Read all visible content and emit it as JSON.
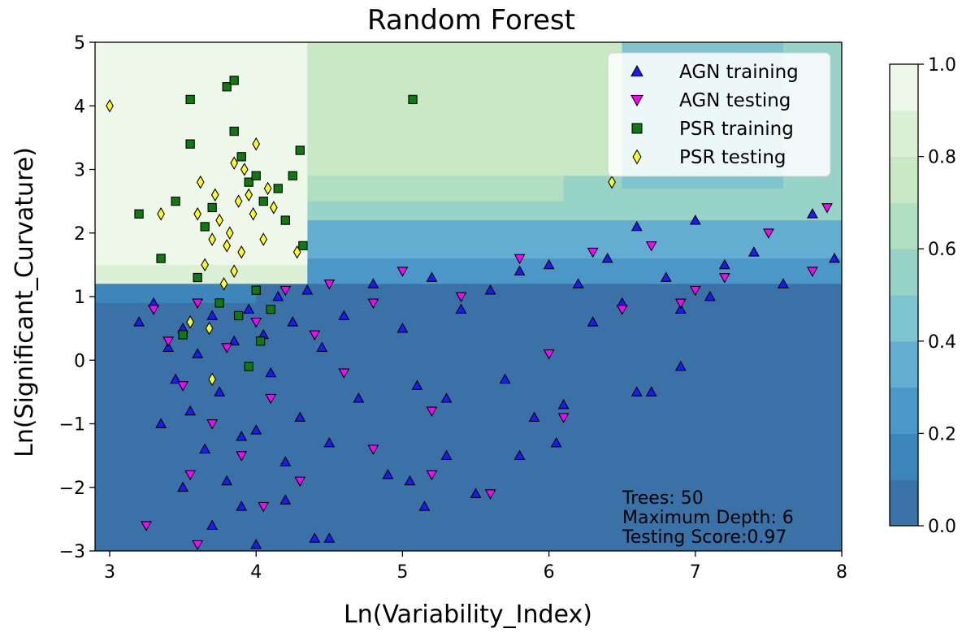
{
  "chart_data": {
    "type": "scatter",
    "title": "Random Forest",
    "xlabel": "Ln(Variability_Index)",
    "ylabel": "Ln(Significant_Curvature)",
    "xlim": [
      2.9,
      8.0
    ],
    "ylim": [
      -3.0,
      5.0
    ],
    "x_ticks": [
      "3",
      "4",
      "5",
      "6",
      "7",
      "8"
    ],
    "y_ticks": [
      "−3",
      "−2",
      "−1",
      "0",
      "1",
      "2",
      "3",
      "4",
      "5"
    ],
    "grid": false,
    "legend_position": "top-right",
    "background": {
      "kind": "decision-probability-contour",
      "note": "filled contour of PSR probability; high (pale green) for low variability and curvature above about 1.2"
    },
    "colorbar": {
      "range": [
        0.0,
        1.0
      ],
      "ticks": [
        "0.0",
        "0.2",
        "0.4",
        "0.6",
        "0.8",
        "1.0"
      ],
      "levels": 10,
      "colors": [
        "#3a72a8",
        "#3d86bc",
        "#4b98c8",
        "#63aed0",
        "#7ec5cf",
        "#97d3c7",
        "#b1dfc1",
        "#c9e9c4",
        "#dcf0d6",
        "#eef8ea"
      ]
    },
    "annotations": [
      "Trees: 50",
      "Maximum Depth: 6",
      "Testing Score:0.97"
    ],
    "series": [
      {
        "name": "AGN training",
        "marker": "triangle-up",
        "color": "#1a1aff",
        "points": [
          [
            3.2,
            0.6
          ],
          [
            3.3,
            0.9
          ],
          [
            3.4,
            0.2
          ],
          [
            3.45,
            -0.3
          ],
          [
            3.5,
            0.5
          ],
          [
            3.55,
            -0.8
          ],
          [
            3.6,
            0.1
          ],
          [
            3.65,
            -1.4
          ],
          [
            3.7,
            0.7
          ],
          [
            3.75,
            -0.5
          ],
          [
            3.8,
            -1.9
          ],
          [
            3.85,
            0.3
          ],
          [
            3.9,
            -2.3
          ],
          [
            3.95,
            0.8
          ],
          [
            4.0,
            -1.1
          ],
          [
            4.05,
            0.4
          ],
          [
            4.1,
            -0.2
          ],
          [
            4.15,
            1.0
          ],
          [
            4.2,
            -1.6
          ],
          [
            4.25,
            0.6
          ],
          [
            4.3,
            -0.9
          ],
          [
            4.35,
            1.1
          ],
          [
            4.4,
            -2.8
          ],
          [
            4.45,
            0.2
          ],
          [
            4.5,
            -1.3
          ],
          [
            4.6,
            0.7
          ],
          [
            4.7,
            -0.6
          ],
          [
            4.8,
            1.2
          ],
          [
            4.9,
            -1.8
          ],
          [
            5.0,
            0.5
          ],
          [
            5.1,
            -0.4
          ],
          [
            5.2,
            1.3
          ],
          [
            5.3,
            -1.5
          ],
          [
            5.4,
            0.8
          ],
          [
            5.5,
            -2.1
          ],
          [
            5.6,
            1.1
          ],
          [
            5.7,
            -0.3
          ],
          [
            5.8,
            1.4
          ],
          [
            5.9,
            -0.9
          ],
          [
            6.0,
            1.5
          ],
          [
            6.1,
            -0.7
          ],
          [
            6.2,
            1.2
          ],
          [
            6.3,
            0.6
          ],
          [
            6.4,
            1.6
          ],
          [
            6.5,
            0.9
          ],
          [
            6.6,
            2.1
          ],
          [
            6.7,
            -0.5
          ],
          [
            6.8,
            1.3
          ],
          [
            6.9,
            0.8
          ],
          [
            7.0,
            2.2
          ],
          [
            7.1,
            1.0
          ],
          [
            7.2,
            1.5
          ],
          [
            7.4,
            1.7
          ],
          [
            7.6,
            1.2
          ],
          [
            7.8,
            2.3
          ],
          [
            7.95,
            1.6
          ],
          [
            3.35,
            -1.0
          ],
          [
            3.5,
            -2.0
          ],
          [
            3.7,
            -2.6
          ],
          [
            3.9,
            -1.2
          ],
          [
            4.0,
            -2.9
          ],
          [
            4.2,
            -2.2
          ],
          [
            4.5,
            -2.8
          ],
          [
            5.05,
            -1.9
          ],
          [
            5.15,
            -2.3
          ],
          [
            5.3,
            -0.6
          ],
          [
            5.8,
            -1.5
          ],
          [
            6.05,
            -1.3
          ],
          [
            6.6,
            -0.5
          ],
          [
            6.9,
            -0.1
          ]
        ]
      },
      {
        "name": "AGN testing",
        "marker": "triangle-down",
        "color": "#ff00ff",
        "points": [
          [
            3.3,
            0.8
          ],
          [
            3.4,
            0.3
          ],
          [
            3.5,
            -0.4
          ],
          [
            3.6,
            0.9
          ],
          [
            3.7,
            -1.0
          ],
          [
            3.8,
            0.2
          ],
          [
            3.9,
            -1.5
          ],
          [
            4.0,
            0.6
          ],
          [
            4.1,
            -0.6
          ],
          [
            4.2,
            1.1
          ],
          [
            4.3,
            -1.9
          ],
          [
            4.4,
            0.4
          ],
          [
            4.5,
            1.2
          ],
          [
            4.6,
            -0.2
          ],
          [
            4.8,
            0.9
          ],
          [
            5.0,
            1.4
          ],
          [
            5.2,
            -0.8
          ],
          [
            5.4,
            1.0
          ],
          [
            5.6,
            -2.1
          ],
          [
            5.8,
            1.6
          ],
          [
            6.0,
            0.1
          ],
          [
            6.1,
            -0.9
          ],
          [
            6.3,
            1.7
          ],
          [
            6.5,
            0.8
          ],
          [
            6.7,
            1.8
          ],
          [
            6.9,
            0.9
          ],
          [
            7.0,
            1.1
          ],
          [
            7.2,
            1.3
          ],
          [
            7.5,
            2.0
          ],
          [
            7.8,
            1.4
          ],
          [
            7.9,
            2.4
          ],
          [
            3.25,
            -2.6
          ],
          [
            3.6,
            -2.9
          ],
          [
            4.05,
            -2.3
          ],
          [
            5.2,
            -1.8
          ],
          [
            3.55,
            -1.8
          ],
          [
            4.8,
            -1.4
          ]
        ]
      },
      {
        "name": "PSR training",
        "marker": "square",
        "color": "#107a10",
        "points": [
          [
            3.2,
            2.3
          ],
          [
            3.35,
            1.6
          ],
          [
            3.45,
            2.5
          ],
          [
            3.5,
            0.4
          ],
          [
            3.55,
            3.4
          ],
          [
            3.55,
            4.1
          ],
          [
            3.6,
            1.3
          ],
          [
            3.65,
            2.1
          ],
          [
            3.7,
            2.4
          ],
          [
            3.75,
            0.9
          ],
          [
            3.8,
            4.3
          ],
          [
            3.85,
            4.4
          ],
          [
            3.85,
            3.6
          ],
          [
            3.9,
            3.2
          ],
          [
            3.95,
            2.8
          ],
          [
            3.95,
            -0.1
          ],
          [
            4.0,
            1.1
          ],
          [
            4.0,
            2.9
          ],
          [
            4.05,
            2.5
          ],
          [
            4.1,
            0.8
          ],
          [
            4.15,
            2.7
          ],
          [
            4.2,
            2.2
          ],
          [
            4.25,
            2.9
          ],
          [
            4.3,
            3.3
          ],
          [
            4.32,
            1.8
          ],
          [
            5.07,
            4.1
          ],
          [
            3.88,
            0.7
          ],
          [
            4.03,
            0.3
          ]
        ]
      },
      {
        "name": "PSR testing",
        "marker": "diamond",
        "color": "#ffff1a",
        "points": [
          [
            3.0,
            4.0
          ],
          [
            3.35,
            2.3
          ],
          [
            3.55,
            0.6
          ],
          [
            3.6,
            2.3
          ],
          [
            3.62,
            2.8
          ],
          [
            3.65,
            1.5
          ],
          [
            3.7,
            1.9
          ],
          [
            3.72,
            2.6
          ],
          [
            3.75,
            2.2
          ],
          [
            3.78,
            1.2
          ],
          [
            3.8,
            1.8
          ],
          [
            3.82,
            2.0
          ],
          [
            3.85,
            1.4
          ],
          [
            3.85,
            3.1
          ],
          [
            3.88,
            2.5
          ],
          [
            3.9,
            1.7
          ],
          [
            3.92,
            3.0
          ],
          [
            3.95,
            2.6
          ],
          [
            3.98,
            2.3
          ],
          [
            4.0,
            3.4
          ],
          [
            4.05,
            1.9
          ],
          [
            4.08,
            2.7
          ],
          [
            4.12,
            2.4
          ],
          [
            3.7,
            -0.3
          ],
          [
            3.68,
            0.5
          ],
          [
            4.28,
            1.7
          ],
          [
            6.43,
            2.8
          ]
        ]
      }
    ]
  }
}
